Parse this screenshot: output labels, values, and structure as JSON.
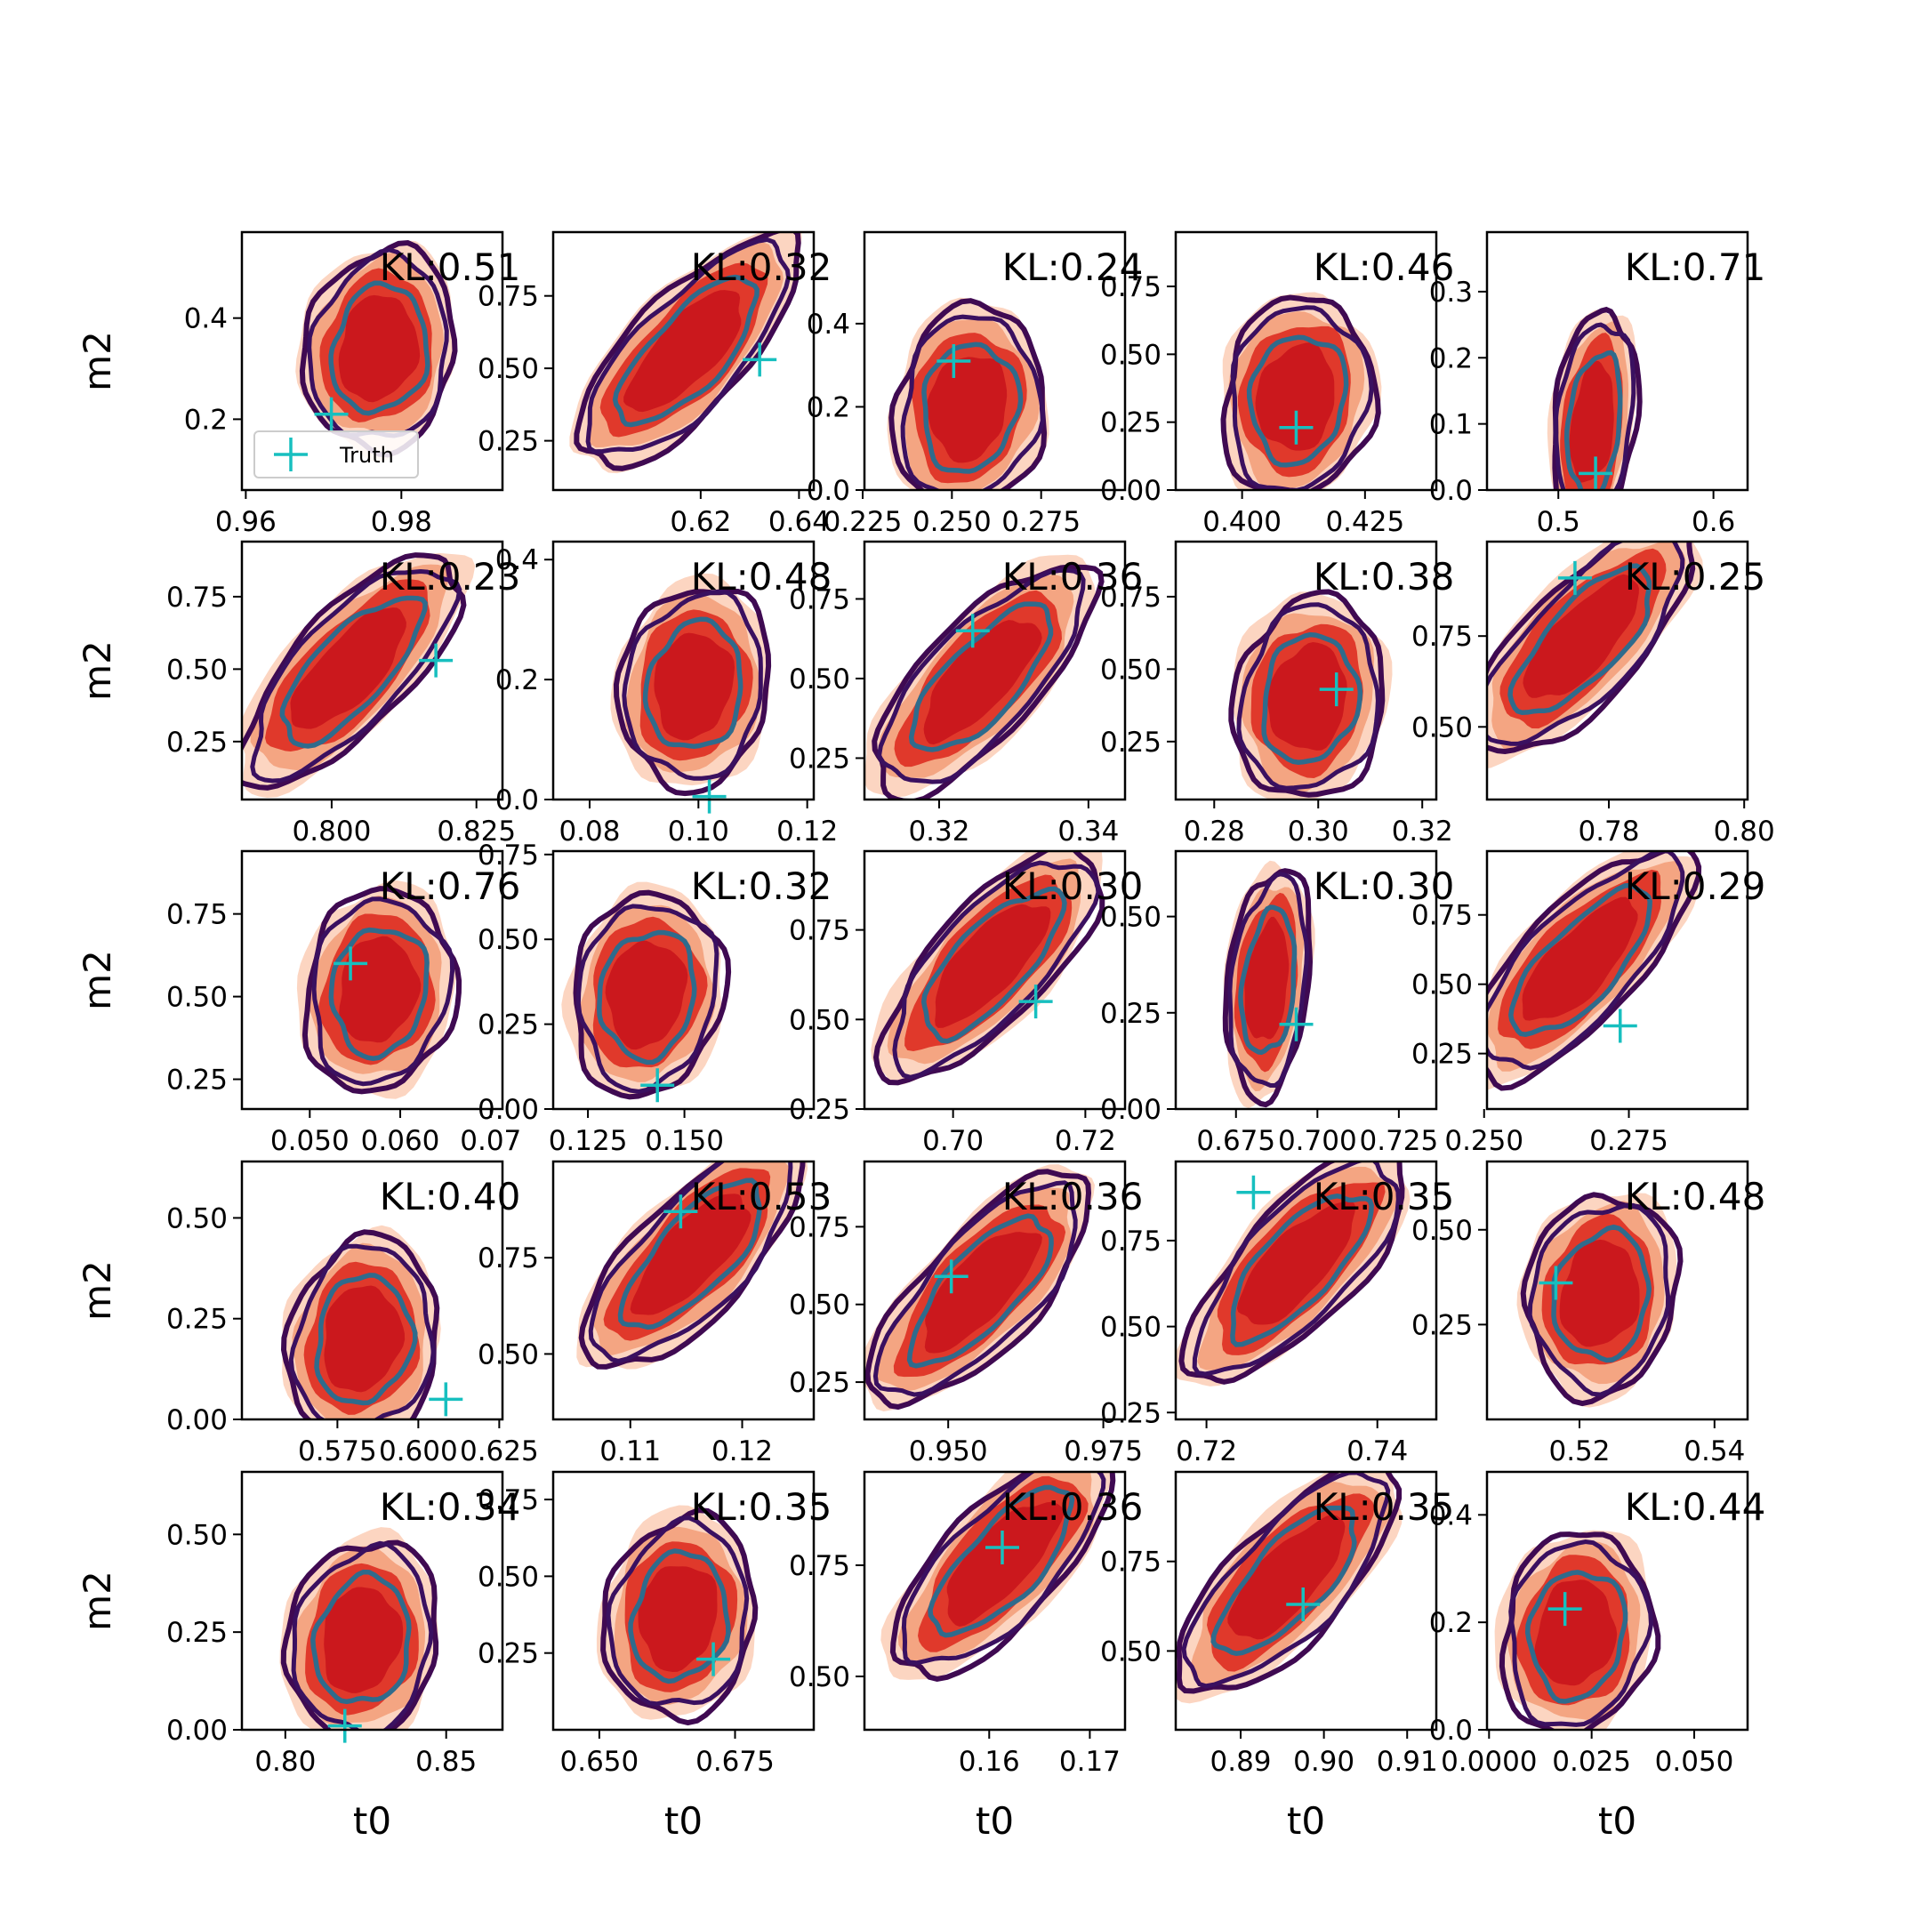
{
  "chart_data": {
    "type": "scatter",
    "legend": {
      "label": "Truth",
      "placement": "lower-left",
      "panel": 0
    },
    "colors": {
      "fill_outer": "#fcd5c1",
      "fill_mid": "#f4a582",
      "fill_inner": "#e0392b",
      "fill_core": "#cb181d",
      "contour_outer": "#3f0a52",
      "contour_mid": "#3a1060",
      "contour_inner": "#2f6b8c",
      "truth_marker": "#17bfbf"
    },
    "panels": [
      {
        "kl": "KL:0.51",
        "xlabel": "",
        "ylabel": "m2",
        "xticks": [
          "0.96",
          "0.98"
        ],
        "yticks": [
          "0.2",
          "0.4"
        ],
        "xlim": [
          0.9595,
          0.993
        ],
        "ylim": [
          0.06,
          0.57
        ],
        "truth": [
          0.971,
          0.21
        ],
        "center": [
          0.977,
          0.34
        ],
        "shape": "blob"
      },
      {
        "kl": "KL:0.32",
        "xlabel": "",
        "ylabel": "",
        "xticks": [
          "0.62",
          "0.64"
        ],
        "yticks": [
          "0.25",
          "0.50",
          "0.75"
        ],
        "xlim": [
          0.59,
          0.643
        ],
        "ylim": [
          0.08,
          0.97
        ],
        "truth": [
          0.632,
          0.53
        ],
        "center": [
          0.617,
          0.56
        ],
        "shape": "diagonal"
      },
      {
        "kl": "KL:0.24",
        "xlabel": "",
        "ylabel": "",
        "xticks": [
          "0.225",
          "0.250",
          "0.275"
        ],
        "yticks": [
          "0.0",
          "0.2",
          "0.4"
        ],
        "xlim": [
          0.2255,
          0.2985
        ],
        "ylim": [
          0.0,
          0.62
        ],
        "truth": [
          0.2505,
          0.31
        ],
        "center": [
          0.2545,
          0.2
        ],
        "shape": "blob"
      },
      {
        "kl": "KL:0.46",
        "xlabel": "",
        "ylabel": "",
        "xticks": [
          "0.400",
          "0.425"
        ],
        "yticks": [
          "0.00",
          "0.25",
          "0.50",
          "0.75"
        ],
        "xlim": [
          0.3865,
          0.4395
        ],
        "ylim": [
          0.0,
          0.95
        ],
        "truth": [
          0.411,
          0.23
        ],
        "center": [
          0.411,
          0.34
        ],
        "shape": "blob"
      },
      {
        "kl": "KL:0.71",
        "xlabel": "",
        "ylabel": "",
        "xticks": [
          "0.5",
          "0.6"
        ],
        "yticks": [
          "0.0",
          "0.1",
          "0.2",
          "0.3"
        ],
        "xlim": [
          0.454,
          0.622
        ],
        "ylim": [
          0.0,
          0.39
        ],
        "truth": [
          0.524,
          0.025
        ],
        "center": [
          0.522,
          0.1
        ],
        "shape": "narrow"
      },
      {
        "kl": "KL:0.23",
        "xlabel": "",
        "ylabel": "m2",
        "xticks": [
          "0.800",
          "0.825"
        ],
        "yticks": [
          "0.25",
          "0.50",
          "0.75"
        ],
        "xlim": [
          0.7845,
          0.8295
        ],
        "ylim": [
          0.05,
          0.94
        ],
        "truth": [
          0.818,
          0.53
        ],
        "center": [
          0.803,
          0.5
        ],
        "shape": "diagonal"
      },
      {
        "kl": "KL:0.48",
        "xlabel": "",
        "ylabel": "",
        "xticks": [
          "0.08",
          "0.10",
          "0.12"
        ],
        "yticks": [
          "0.0",
          "0.2",
          "0.4"
        ],
        "xlim": [
          0.0733,
          0.1212
        ],
        "ylim": [
          0.0,
          0.43
        ],
        "truth": [
          0.102,
          0.005
        ],
        "center": [
          0.099,
          0.19
        ],
        "shape": "blob"
      },
      {
        "kl": "KL:0.36",
        "xlabel": "",
        "ylabel": "",
        "xticks": [
          "0.32",
          "0.34"
        ],
        "yticks": [
          "0.25",
          "0.50",
          "0.75"
        ],
        "xlim": [
          0.31,
          0.3449
        ],
        "ylim": [
          0.12,
          0.93
        ],
        "truth": [
          0.3245,
          0.65
        ],
        "center": [
          0.3255,
          0.5
        ],
        "shape": "diagonal"
      },
      {
        "kl": "KL:0.38",
        "xlabel": "",
        "ylabel": "",
        "xticks": [
          "0.28",
          "0.30",
          "0.32"
        ],
        "yticks": [
          "0.25",
          "0.50",
          "0.75"
        ],
        "xlim": [
          0.2726,
          0.3227
        ],
        "ylim": [
          0.05,
          0.94
        ],
        "truth": [
          0.3035,
          0.43
        ],
        "center": [
          0.298,
          0.4
        ],
        "shape": "blob"
      },
      {
        "kl": "KL:0.25",
        "xlabel": "",
        "ylabel": "",
        "xticks": [
          "0.78",
          "0.80"
        ],
        "yticks": [
          "0.50",
          "0.75"
        ],
        "xlim": [
          0.762,
          0.8005
        ],
        "ylim": [
          0.3,
          1.01
        ],
        "truth": [
          0.775,
          0.91
        ],
        "center": [
          0.776,
          0.74
        ],
        "shape": "diagonal"
      },
      {
        "kl": "KL:0.76",
        "xlabel": "",
        "ylabel": "m2",
        "xticks": [
          "0.050",
          "0.060",
          "0.07"
        ],
        "yticks": [
          "0.25",
          "0.50",
          "0.75"
        ],
        "xlim": [
          0.0425,
          0.0713
        ],
        "ylim": [
          0.16,
          0.94
        ],
        "truth": [
          0.0545,
          0.6
        ],
        "center": [
          0.0575,
          0.52
        ],
        "shape": "blob"
      },
      {
        "kl": "KL:0.32",
        "xlabel": "",
        "ylabel": "",
        "xticks": [
          "0.125",
          "0.150"
        ],
        "yticks": [
          "0.00",
          "0.25",
          "0.50",
          "0.75"
        ],
        "xlim": [
          0.116,
          0.1835
        ],
        "ylim": [
          0.0,
          0.76
        ],
        "truth": [
          0.143,
          0.07
        ],
        "center": [
          0.14,
          0.34
        ],
        "shape": "blob"
      },
      {
        "kl": "KL:0.30",
        "xlabel": "",
        "ylabel": "",
        "xticks": [
          "0.70",
          "0.72"
        ],
        "yticks": [
          "0.25",
          "0.50",
          "0.75"
        ],
        "xlim": [
          0.6866,
          0.726
        ],
        "ylim": [
          0.25,
          0.97
        ],
        "truth": [
          0.7125,
          0.55
        ],
        "center": [
          0.7055,
          0.66
        ],
        "shape": "diagonal"
      },
      {
        "kl": "KL:0.30",
        "xlabel": "",
        "ylabel": "",
        "xticks": [
          "0.675",
          "0.700",
          "0.725"
        ],
        "yticks": [
          "0.00",
          "0.25",
          "0.50"
        ],
        "xlim": [
          0.6565,
          0.7365
        ],
        "ylim": [
          0.0,
          0.67
        ],
        "truth": [
          0.6935,
          0.22
        ],
        "center": [
          0.6845,
          0.33
        ],
        "shape": "narrow"
      },
      {
        "kl": "KL:0.29",
        "xlabel": "",
        "ylabel": "",
        "xticks": [
          "0.250",
          "0.275"
        ],
        "yticks": [
          "0.25",
          "0.50",
          "0.75"
        ],
        "xlim": [
          0.2505,
          0.2955
        ],
        "ylim": [
          0.05,
          0.98
        ],
        "truth": [
          0.2735,
          0.35
        ],
        "center": [
          0.2665,
          0.58
        ],
        "shape": "diagonal"
      },
      {
        "kl": "KL:0.40",
        "xlabel": "",
        "ylabel": "m2",
        "xticks": [
          "0.575",
          "0.600",
          "0.625"
        ],
        "yticks": [
          "0.00",
          "0.25",
          "0.50"
        ],
        "xlim": [
          0.5455,
          0.626
        ],
        "ylim": [
          0.0,
          0.64
        ],
        "truth": [
          0.6085,
          0.05
        ],
        "center": [
          0.5825,
          0.2
        ],
        "shape": "blob"
      },
      {
        "kl": "KL:0.53",
        "xlabel": "",
        "ylabel": "",
        "xticks": [
          "0.11",
          "0.12"
        ],
        "yticks": [
          "0.50",
          "0.75"
        ],
        "xlim": [
          0.1031,
          0.1264
        ],
        "ylim": [
          0.33,
          1.0
        ],
        "truth": [
          0.1145,
          0.87
        ],
        "center": [
          0.1155,
          0.76
        ],
        "shape": "diagonal"
      },
      {
        "kl": "KL:0.36",
        "xlabel": "",
        "ylabel": "",
        "xticks": [
          "0.950",
          "0.975"
        ],
        "yticks": [
          "0.25",
          "0.50",
          "0.75"
        ],
        "xlim": [
          0.9365,
          0.9785
        ],
        "ylim": [
          0.13,
          0.96
        ],
        "truth": [
          0.9505,
          0.59
        ],
        "center": [
          0.955,
          0.55
        ],
        "shape": "diagonal"
      },
      {
        "kl": "KL:0.35",
        "xlabel": "",
        "ylabel": "",
        "xticks": [
          "0.72",
          "0.74"
        ],
        "yticks": [
          "0.25",
          "0.50",
          "0.75"
        ],
        "xlim": [
          0.7164,
          0.7469
        ],
        "ylim": [
          0.23,
          0.98
        ],
        "truth": [
          0.7255,
          0.89
        ],
        "center": [
          0.7305,
          0.68
        ],
        "shape": "diagonal"
      },
      {
        "kl": "KL:0.48",
        "xlabel": "",
        "ylabel": "",
        "xticks": [
          "0.52",
          "0.54"
        ],
        "yticks": [
          "0.25",
          "0.50"
        ],
        "xlim": [
          0.5063,
          0.5449
        ],
        "ylim": [
          0.0,
          0.68
        ],
        "truth": [
          0.5165,
          0.36
        ],
        "center": [
          0.523,
          0.33
        ],
        "shape": "blob"
      },
      {
        "kl": "KL:0.34",
        "xlabel": "t0",
        "ylabel": "m2",
        "xticks": [
          "0.80",
          "0.85"
        ],
        "yticks": [
          "0.00",
          "0.25",
          "0.50"
        ],
        "xlim": [
          0.7865,
          0.8675
        ],
        "ylim": [
          0.0,
          0.66
        ],
        "truth": [
          0.8185,
          0.01
        ],
        "center": [
          0.8235,
          0.23
        ],
        "shape": "blob"
      },
      {
        "kl": "KL:0.35",
        "xlabel": "t0",
        "ylabel": "",
        "xticks": [
          "0.650",
          "0.675"
        ],
        "yticks": [
          "0.25",
          "0.50",
          "0.75"
        ],
        "xlim": [
          0.6415,
          0.6895
        ],
        "ylim": [
          0.0,
          0.84
        ],
        "truth": [
          0.671,
          0.23
        ],
        "center": [
          0.6645,
          0.37
        ],
        "shape": "blob"
      },
      {
        "kl": "KL:0.36",
        "xlabel": "t0",
        "ylabel": "",
        "xticks": [
          "0.16",
          "0.17"
        ],
        "yticks": [
          "0.50",
          "0.75"
        ],
        "xlim": [
          0.1476,
          0.1735
        ],
        "ylim": [
          0.38,
          0.96
        ],
        "truth": [
          0.1613,
          0.79
        ],
        "center": [
          0.1612,
          0.76
        ],
        "shape": "diagonal"
      },
      {
        "kl": "KL:0.35",
        "xlabel": "t0",
        "ylabel": "",
        "xticks": [
          "0.89",
          "0.90",
          "0.91"
        ],
        "yticks": [
          "0.50",
          "0.75"
        ],
        "xlim": [
          0.8822,
          0.9135
        ],
        "ylim": [
          0.28,
          1.0
        ],
        "truth": [
          0.8975,
          0.63
        ],
        "center": [
          0.8955,
          0.7
        ],
        "shape": "diagonal"
      },
      {
        "kl": "KL:0.44",
        "xlabel": "t0",
        "ylabel": "",
        "xticks": [
          "0.0000",
          "0.025",
          "0.050"
        ],
        "yticks": [
          "0.0",
          "0.2",
          "0.4"
        ],
        "xlim": [
          -0.0005,
          0.063
        ],
        "ylim": [
          0.0,
          0.48
        ],
        "truth": [
          0.0185,
          0.225
        ],
        "center": [
          0.021,
          0.18
        ],
        "shape": "blob"
      }
    ]
  }
}
